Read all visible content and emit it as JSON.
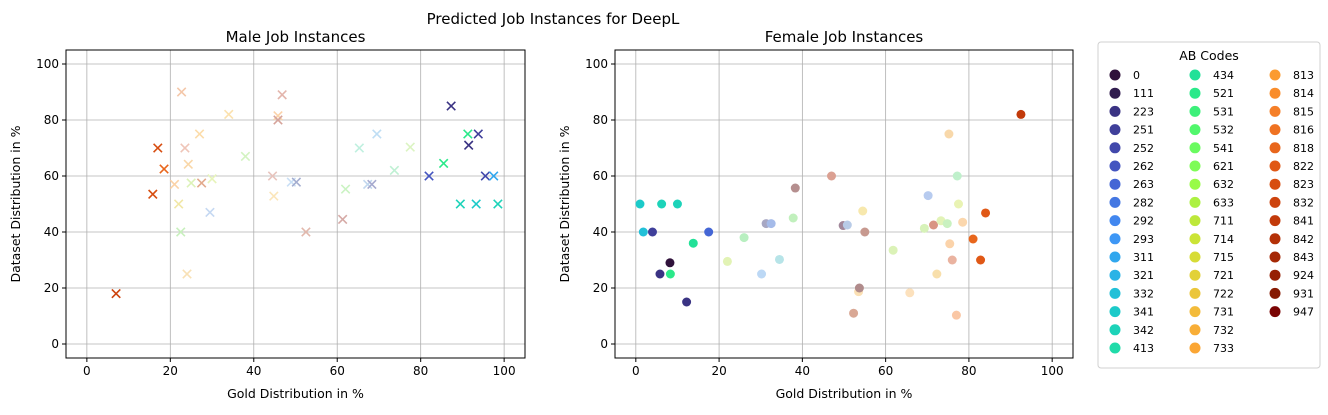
{
  "figure": {
    "suptitle": "Predicted Job Instances for DeepL"
  },
  "legend": {
    "title": "AB Codes",
    "placement": "right, outside plots",
    "columns": 3,
    "entries": [
      {
        "code": "0",
        "color": "#30123b"
      },
      {
        "code": "111",
        "color": "#311d4f"
      },
      {
        "code": "223",
        "color": "#3a3383"
      },
      {
        "code": "251",
        "color": "#3f3f9a"
      },
      {
        "code": "252",
        "color": "#4148ab"
      },
      {
        "code": "262",
        "color": "#4455c0"
      },
      {
        "code": "263",
        "color": "#4466d5"
      },
      {
        "code": "282",
        "color": "#4477e2"
      },
      {
        "code": "292",
        "color": "#4287ef"
      },
      {
        "code": "293",
        "color": "#3e97f5"
      },
      {
        "code": "311",
        "color": "#31a7ee"
      },
      {
        "code": "321",
        "color": "#2ab3e6"
      },
      {
        "code": "332",
        "color": "#22c0d8"
      },
      {
        "code": "341",
        "color": "#1ccac9"
      },
      {
        "code": "342",
        "color": "#1dd3b9"
      },
      {
        "code": "413",
        "color": "#20dba9"
      },
      {
        "code": "434",
        "color": "#22e198"
      },
      {
        "code": "521",
        "color": "#2be98a"
      },
      {
        "code": "531",
        "color": "#3cf07a"
      },
      {
        "code": "532",
        "color": "#51f76c"
      },
      {
        "code": "541",
        "color": "#6afb60"
      },
      {
        "code": "621",
        "color": "#7efc57"
      },
      {
        "code": "632",
        "color": "#98fb47"
      },
      {
        "code": "633",
        "color": "#acf141"
      },
      {
        "code": "711",
        "color": "#bde83a"
      },
      {
        "code": "714",
        "color": "#cbe436"
      },
      {
        "code": "715",
        "color": "#d7dc36"
      },
      {
        "code": "721",
        "color": "#e2d138"
      },
      {
        "code": "722",
        "color": "#ebc63a"
      },
      {
        "code": "731",
        "color": "#f3bb3a"
      },
      {
        "code": "732",
        "color": "#f8ae37"
      },
      {
        "code": "733",
        "color": "#fba634"
      },
      {
        "code": "813",
        "color": "#fb9b30"
      },
      {
        "code": "814",
        "color": "#f98d2c"
      },
      {
        "code": "815",
        "color": "#f57f28"
      },
      {
        "code": "816",
        "color": "#ef7222"
      },
      {
        "code": "818",
        "color": "#e8661c"
      },
      {
        "code": "822",
        "color": "#e05816"
      },
      {
        "code": "823",
        "color": "#d74e11"
      },
      {
        "code": "832",
        "color": "#cd430d"
      },
      {
        "code": "841",
        "color": "#c23a0a"
      },
      {
        "code": "842",
        "color": "#b43107"
      },
      {
        "code": "843",
        "color": "#a52805"
      },
      {
        "code": "924",
        "color": "#962003"
      },
      {
        "code": "931",
        "color": "#861a02"
      },
      {
        "code": "947",
        "color": "#7a0403"
      }
    ]
  },
  "chart_data": [
    {
      "type": "scatter",
      "title": "Male Job Instances",
      "xlabel": "Gold Distribution in %",
      "ylabel": "Dataset Distribution in %",
      "xlim": [
        -5,
        105
      ],
      "ylim": [
        -5,
        105
      ],
      "xticks": [
        0,
        20,
        40,
        60,
        80,
        100
      ],
      "yticks": [
        0,
        20,
        40,
        60,
        80,
        100
      ],
      "grid": true,
      "marker": "x",
      "points": [
        {
          "x": 7,
          "y": 18,
          "color": "#cd430d",
          "alpha": 1
        },
        {
          "x": 15.8,
          "y": 53.5,
          "color": "#d74e11",
          "alpha": 1
        },
        {
          "x": 17,
          "y": 70,
          "color": "#d74e11",
          "alpha": 1
        },
        {
          "x": 18.5,
          "y": 62.5,
          "color": "#e8661c",
          "alpha": 1
        },
        {
          "x": 21,
          "y": 57,
          "color": "#fbd3a7",
          "alpha": 1
        },
        {
          "x": 22,
          "y": 50,
          "color": "#f1e7a6",
          "alpha": 1
        },
        {
          "x": 22.5,
          "y": 40,
          "color": "#c8f0bd",
          "alpha": 1
        },
        {
          "x": 22.7,
          "y": 90,
          "color": "#f4c7a9",
          "alpha": 1
        },
        {
          "x": 23.5,
          "y": 70,
          "color": "#efc5b8",
          "alpha": 1
        },
        {
          "x": 24,
          "y": 25,
          "color": "#f8e1b6",
          "alpha": 1
        },
        {
          "x": 24.3,
          "y": 64.2,
          "color": "#f9d7a8",
          "alpha": 1
        },
        {
          "x": 25,
          "y": 57.5,
          "color": "#dcf2b8",
          "alpha": 1
        },
        {
          "x": 27,
          "y": 75,
          "color": "#fcdcaa",
          "alpha": 1
        },
        {
          "x": 27.5,
          "y": 57.5,
          "color": "#e2aa8c",
          "alpha": 1
        },
        {
          "x": 29.5,
          "y": 47,
          "color": "#c5d8f2",
          "alpha": 1
        },
        {
          "x": 30,
          "y": 59,
          "color": "#e7f4bb",
          "alpha": 1
        },
        {
          "x": 34,
          "y": 82,
          "color": "#fbe1ae",
          "alpha": 1
        },
        {
          "x": 38,
          "y": 67,
          "color": "#d3f3c1",
          "alpha": 1
        },
        {
          "x": 44.5,
          "y": 60,
          "color": "#e8c4bd",
          "alpha": 1
        },
        {
          "x": 44.8,
          "y": 52.8,
          "color": "#fbe6ba",
          "alpha": 1
        },
        {
          "x": 45.8,
          "y": 81.5,
          "color": "#fbd3aa",
          "alpha": 1
        },
        {
          "x": 45.8,
          "y": 80,
          "color": "#d6a39a",
          "alpha": 1
        },
        {
          "x": 46.8,
          "y": 89,
          "color": "#e3b5ac",
          "alpha": 1
        },
        {
          "x": 49,
          "y": 57.8,
          "color": "#c9dff5",
          "alpha": 1
        },
        {
          "x": 50.2,
          "y": 57.8,
          "color": "#a4aed0",
          "alpha": 1
        },
        {
          "x": 52.5,
          "y": 40,
          "color": "#e2b8ac",
          "alpha": 1
        },
        {
          "x": 61.3,
          "y": 44.5,
          "color": "#d6aaa6",
          "alpha": 1
        },
        {
          "x": 62,
          "y": 55.3,
          "color": "#cbf3c3",
          "alpha": 1
        },
        {
          "x": 65.3,
          "y": 70,
          "color": "#c0f0df",
          "alpha": 1
        },
        {
          "x": 67.3,
          "y": 57,
          "color": "#c1d7ee",
          "alpha": 1
        },
        {
          "x": 68.3,
          "y": 57,
          "color": "#a6aacf",
          "alpha": 1
        },
        {
          "x": 69.5,
          "y": 75,
          "color": "#bfdef4",
          "alpha": 1
        },
        {
          "x": 73.7,
          "y": 62,
          "color": "#bff0d3",
          "alpha": 1
        },
        {
          "x": 77.5,
          "y": 70.3,
          "color": "#dbf4c2",
          "alpha": 1
        },
        {
          "x": 82,
          "y": 60,
          "color": "#4455c0",
          "alpha": 1
        },
        {
          "x": 85.5,
          "y": 64.5,
          "color": "#2be98a",
          "alpha": 1
        },
        {
          "x": 87.3,
          "y": 85,
          "color": "#3a3383",
          "alpha": 1
        },
        {
          "x": 89.5,
          "y": 50,
          "color": "#1dd3b9",
          "alpha": 1
        },
        {
          "x": 91.3,
          "y": 75,
          "color": "#2be98a",
          "alpha": 1
        },
        {
          "x": 91.5,
          "y": 71,
          "color": "#3a3383",
          "alpha": 1
        },
        {
          "x": 93.3,
          "y": 50,
          "color": "#1ccac9",
          "alpha": 1
        },
        {
          "x": 93.8,
          "y": 75,
          "color": "#3f3f9a",
          "alpha": 1
        },
        {
          "x": 95.5,
          "y": 60,
          "color": "#4148ab",
          "alpha": 1
        },
        {
          "x": 97.5,
          "y": 60,
          "color": "#31a7ee",
          "alpha": 1
        },
        {
          "x": 98.5,
          "y": 50,
          "color": "#1dd3b9",
          "alpha": 1
        }
      ]
    },
    {
      "type": "scatter",
      "title": "Female Job Instances",
      "xlabel": "Gold Distribution in %",
      "ylabel": "Dataset Distribution in %",
      "xlim": [
        -5,
        105
      ],
      "ylim": [
        -5,
        105
      ],
      "xticks": [
        0,
        20,
        40,
        60,
        80,
        100
      ],
      "yticks": [
        0,
        20,
        40,
        60,
        80,
        100
      ],
      "grid": true,
      "marker": "o",
      "points": [
        {
          "x": 1,
          "y": 50,
          "color": "#1ccac9",
          "alpha": 1
        },
        {
          "x": 1.8,
          "y": 40,
          "color": "#22c0d8",
          "alpha": 1
        },
        {
          "x": 4,
          "y": 40,
          "color": "#3f3f9a",
          "alpha": 1
        },
        {
          "x": 5.8,
          "y": 25,
          "color": "#3a3383",
          "alpha": 1
        },
        {
          "x": 6.2,
          "y": 50,
          "color": "#1dd3b9",
          "alpha": 1
        },
        {
          "x": 8.2,
          "y": 29,
          "color": "#30123b",
          "alpha": 1
        },
        {
          "x": 8.3,
          "y": 25,
          "color": "#2be98a",
          "alpha": 1
        },
        {
          "x": 10,
          "y": 50,
          "color": "#1dd3b9",
          "alpha": 1
        },
        {
          "x": 12.2,
          "y": 15,
          "color": "#3a3383",
          "alpha": 1
        },
        {
          "x": 13.8,
          "y": 36,
          "color": "#22e198",
          "alpha": 1
        },
        {
          "x": 17.5,
          "y": 40,
          "color": "#4466d5",
          "alpha": 1
        },
        {
          "x": 22,
          "y": 29.5,
          "color": "#e2f3b5",
          "alpha": 1
        },
        {
          "x": 26,
          "y": 38,
          "color": "#b8efc0",
          "alpha": 1
        },
        {
          "x": 30.2,
          "y": 25,
          "color": "#bcd8f5",
          "alpha": 1
        },
        {
          "x": 31.3,
          "y": 43,
          "color": "#a7a7c3",
          "alpha": 1
        },
        {
          "x": 32.5,
          "y": 43,
          "color": "#a5bbe9",
          "alpha": 1
        },
        {
          "x": 34.5,
          "y": 30.2,
          "color": "#b7e4e8",
          "alpha": 1
        },
        {
          "x": 37.8,
          "y": 45,
          "color": "#c1f0bd",
          "alpha": 1
        },
        {
          "x": 38.3,
          "y": 55.7,
          "color": "#b58f8f",
          "alpha": 1
        },
        {
          "x": 47,
          "y": 60,
          "color": "#dba092",
          "alpha": 1
        },
        {
          "x": 49.8,
          "y": 42.3,
          "color": "#a2879a",
          "alpha": 1
        },
        {
          "x": 50.8,
          "y": 42.5,
          "color": "#b8cbe7",
          "alpha": 1
        },
        {
          "x": 52.3,
          "y": 11,
          "color": "#d9a895",
          "alpha": 1
        },
        {
          "x": 53.5,
          "y": 18.7,
          "color": "#fbe0b4",
          "alpha": 1
        },
        {
          "x": 53.7,
          "y": 20,
          "color": "#b08b8b",
          "alpha": 1
        },
        {
          "x": 54.5,
          "y": 47.5,
          "color": "#f7e8ad",
          "alpha": 1
        },
        {
          "x": 55,
          "y": 40,
          "color": "#c7998f",
          "alpha": 1
        },
        {
          "x": 61.8,
          "y": 33.5,
          "color": "#dbf2b7",
          "alpha": 1
        },
        {
          "x": 65.8,
          "y": 18.3,
          "color": "#fce1bd",
          "alpha": 1
        },
        {
          "x": 69.3,
          "y": 41.3,
          "color": "#d7f2b9",
          "alpha": 1
        },
        {
          "x": 70.2,
          "y": 53,
          "color": "#b7cbef",
          "alpha": 1
        },
        {
          "x": 71.5,
          "y": 42.5,
          "color": "#d99583",
          "alpha": 1
        },
        {
          "x": 72.3,
          "y": 25,
          "color": "#f8dfab",
          "alpha": 1
        },
        {
          "x": 73.3,
          "y": 44,
          "color": "#e2f3b7",
          "alpha": 1
        },
        {
          "x": 74.8,
          "y": 43,
          "color": "#c9f1c0",
          "alpha": 1
        },
        {
          "x": 75.2,
          "y": 75,
          "color": "#f8d8aa",
          "alpha": 1
        },
        {
          "x": 75.4,
          "y": 35.8,
          "color": "#fbd3aa",
          "alpha": 1
        },
        {
          "x": 76,
          "y": 30,
          "color": "#eab3a0",
          "alpha": 1
        },
        {
          "x": 77,
          "y": 10.3,
          "color": "#fac7a5",
          "alpha": 1
        },
        {
          "x": 77.2,
          "y": 60,
          "color": "#bff0cb",
          "alpha": 1
        },
        {
          "x": 77.5,
          "y": 50,
          "color": "#e9f3b3",
          "alpha": 1
        },
        {
          "x": 78.5,
          "y": 43.5,
          "color": "#fbd7ad",
          "alpha": 1
        },
        {
          "x": 81,
          "y": 37.5,
          "color": "#e8661c",
          "alpha": 1
        },
        {
          "x": 82.8,
          "y": 30,
          "color": "#e05816",
          "alpha": 1
        },
        {
          "x": 84,
          "y": 46.8,
          "color": "#e05816",
          "alpha": 1
        },
        {
          "x": 92.5,
          "y": 82,
          "color": "#c23a0a",
          "alpha": 1
        }
      ]
    }
  ]
}
